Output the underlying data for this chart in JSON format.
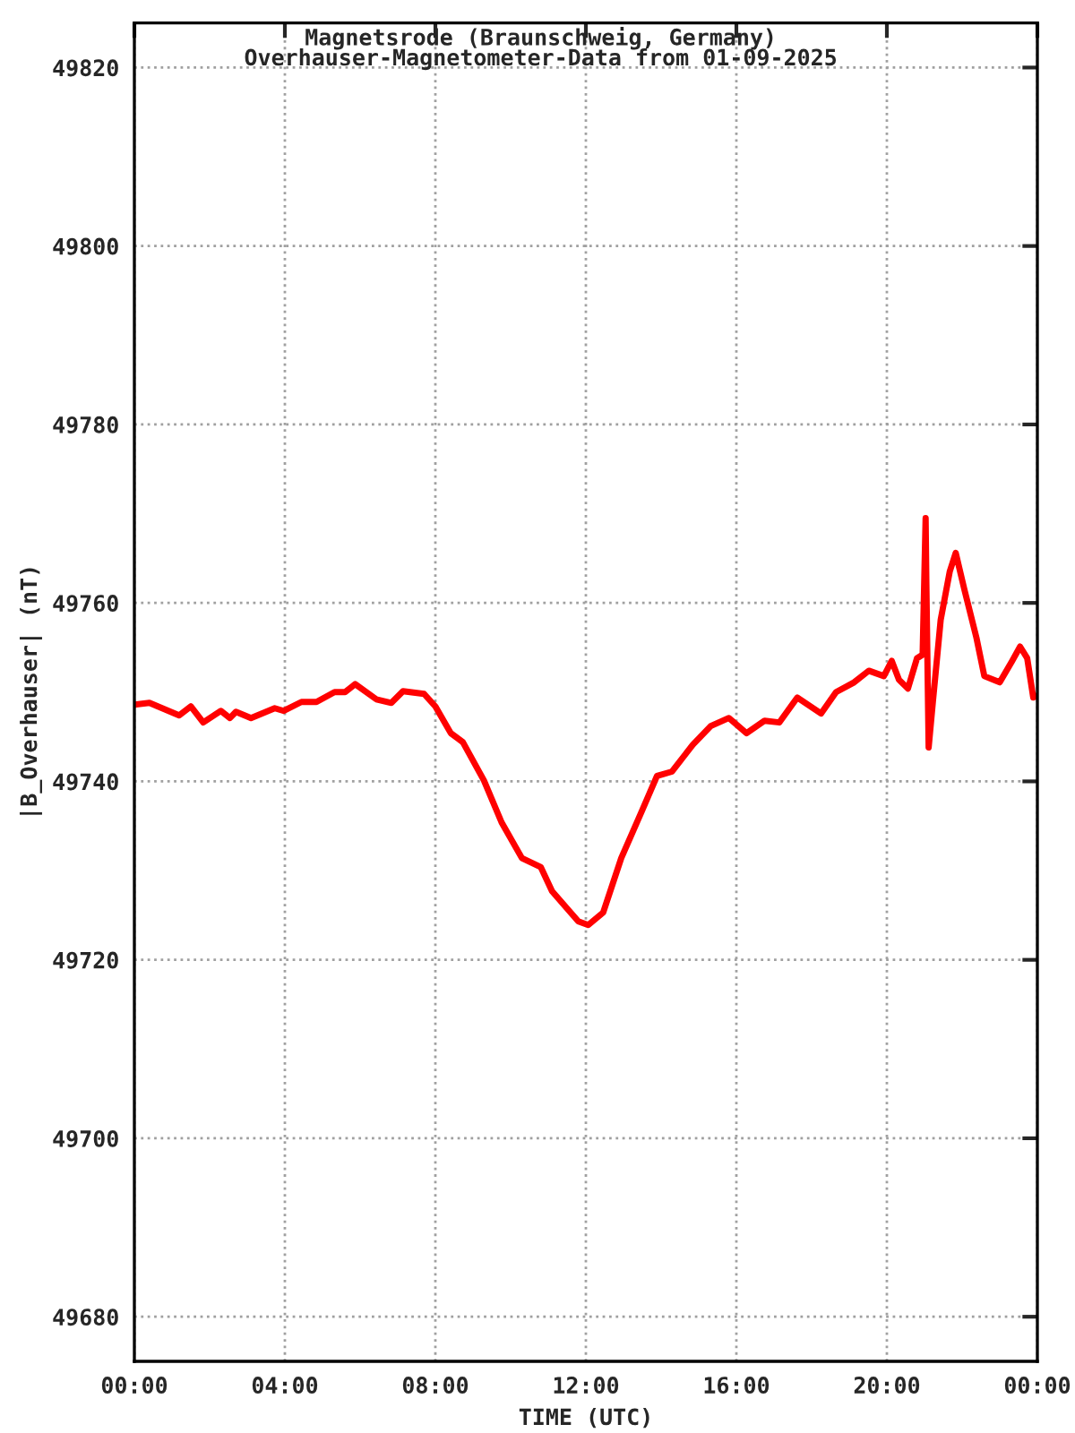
{
  "chart_data": {
    "type": "line",
    "title": "Magnetsrode (Braunschweig, Germany)",
    "subtitle": "Overhauser-Magnetometer-Data from 01-09-2025",
    "xlabel": "TIME (UTC)",
    "ylabel": "|B_Overhauser| (nT)",
    "x": [
      0,
      0.4,
      1.19,
      1.5,
      1.83,
      2.3,
      2.54,
      2.7,
      3.1,
      3.73,
      3.97,
      4.44,
      4.84,
      5.32,
      5.6,
      5.87,
      6.43,
      6.83,
      7.14,
      7.7,
      8.0,
      8.41,
      8.73,
      9.29,
      9.76,
      10.3,
      10.8,
      11.1,
      11.8,
      12.06,
      12.46,
      12.94,
      13.49,
      13.89,
      14.29,
      14.84,
      15.32,
      15.8,
      16.27,
      16.75,
      17.14,
      17.62,
      18.25,
      18.65,
      19.13,
      19.52,
      19.92,
      20.13,
      20.32,
      20.56,
      20.8,
      20.95,
      21.03,
      21.05,
      21.11,
      21.22,
      21.43,
      21.67,
      21.83,
      22.06,
      22.38,
      22.59,
      23.0,
      23.33,
      23.54,
      23.73,
      23.89,
      24.0
    ],
    "series": [
      {
        "color": "#ff0000",
        "values": [
          49748.6,
          49748.8,
          49747.4,
          49748.4,
          49746.6,
          49747.9,
          49747.1,
          49747.8,
          49747.1,
          49748.2,
          49747.9,
          49748.9,
          49748.9,
          49750.0,
          49750.0,
          49750.9,
          49749.2,
          49748.8,
          49750.1,
          49749.8,
          49748.4,
          49745.4,
          49744.4,
          49740.1,
          49735.4,
          49731.4,
          49730.4,
          49727.7,
          49724.3,
          49723.9,
          49725.3,
          49731.4,
          49736.7,
          49740.6,
          49741.1,
          49744.1,
          49746.2,
          49747.1,
          49745.4,
          49746.8,
          49746.6,
          49749.4,
          49747.6,
          49750.0,
          49751.1,
          49752.4,
          49751.8,
          49753.5,
          49751.4,
          49750.4,
          49753.8,
          49754.2,
          49769.5,
          49762.1,
          49743.8,
          49748.8,
          49758.1,
          49763.5,
          49765.6,
          49761.5,
          49756.1,
          49751.8,
          49751.1,
          49753.5,
          49755.1,
          49753.8,
          49749.4,
          49749.6
        ]
      }
    ],
    "xlim": [
      0,
      24
    ],
    "xticks": [
      {
        "value": 0,
        "label": "00:00"
      },
      {
        "value": 4,
        "label": "04:00"
      },
      {
        "value": 8,
        "label": "08:00"
      },
      {
        "value": 12,
        "label": "12:00"
      },
      {
        "value": 16,
        "label": "16:00"
      },
      {
        "value": 20,
        "label": "20:00"
      },
      {
        "value": 24,
        "label": "00:00"
      }
    ],
    "ylim": [
      49675,
      49825
    ],
    "yticks": [
      49680,
      49700,
      49720,
      49740,
      49760,
      49780,
      49800,
      49820
    ],
    "grid": true,
    "line_style": "solid",
    "marker": "none"
  }
}
